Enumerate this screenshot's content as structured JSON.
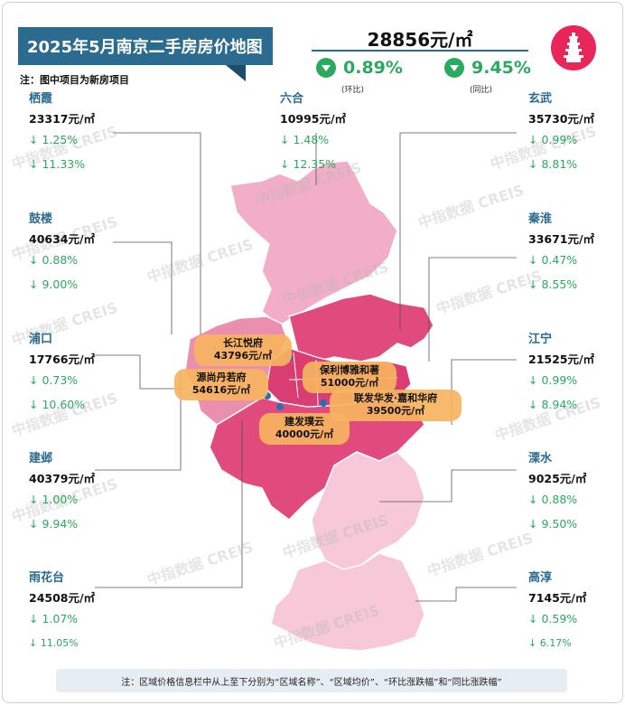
{
  "title": "2025年5月南京二手房房价地图",
  "note": "注：图中项目为新房项目",
  "summary": {
    "avg_price": "28856元/㎡",
    "mom_value": "0.89%",
    "mom_label": "(环比)",
    "yoy_value": "9.45%",
    "yoy_label": "(同比)"
  },
  "districts": {
    "qixia": {
      "name": "栖霞",
      "price": "23317元/㎡",
      "mom": "↓ 1.25%",
      "yoy": "↓ 11.33%"
    },
    "liuhe": {
      "name": "六合",
      "price": "10995元/㎡",
      "mom": "↓ 1.48%",
      "yoy": "↓ 12.35%"
    },
    "xuanwu": {
      "name": "玄武",
      "price": "35730元/㎡",
      "mom": "↓ 0.99%",
      "yoy": "↓ 8.81%"
    },
    "gulou": {
      "name": "鼓楼",
      "price": "40634元/㎡",
      "mom": "↓ 0.88%",
      "yoy": "↓ 9.00%"
    },
    "qinhuai": {
      "name": "秦淮",
      "price": "33671元/㎡",
      "mom": "↓ 0.47%",
      "yoy": "↓ 8.55%"
    },
    "pukou": {
      "name": "浦口",
      "price": "17766元/㎡",
      "mom": "↓ 0.73%",
      "yoy": "↓ 10.60%"
    },
    "jiangning": {
      "name": "江宁",
      "price": "21525元/㎡",
      "mom": "↓ 0.99%",
      "yoy": "↓ 8.94%"
    },
    "jianye": {
      "name": "建邺",
      "price": "40379元/㎡",
      "mom": "↓ 1.00%",
      "yoy": "↓ 9.94%"
    },
    "lishui": {
      "name": "溧水",
      "price": "9025元/㎡",
      "mom": "↓ 0.88%",
      "yoy": "↓ 9.50%"
    },
    "yuhuatai": {
      "name": "雨花台",
      "price": "24508元/㎡",
      "mom": "↓ 1.07%",
      "yoy": "↓ 11.05%"
    },
    "gaochun": {
      "name": "高淳",
      "price": "7145元/㎡",
      "mom": "↓ 0.59%",
      "yoy": "↓ 6.17%"
    }
  },
  "projects": {
    "p1": {
      "name": "长江悦府",
      "price": "43796元/㎡"
    },
    "p2": {
      "name": "源尚丹若府",
      "price": "54616元/㎡"
    },
    "p3": {
      "name": "保利博雅和著",
      "price": "51000元/㎡"
    },
    "p4": {
      "name": "联发华发·嘉和华府",
      "price": "39500元/㎡"
    },
    "p5": {
      "name": "建发璞云",
      "price": "40000元/㎡"
    }
  },
  "watermark": "中指数据 CREIS",
  "footer": "注：区域价格信息栏中从上至下分别为“区域名称”、“区域均价”、“环比涨跌幅”和“同比涨跌幅”",
  "colors": {
    "banner": "#2a6b8f",
    "down_green": "#2aaa5f",
    "map_dark": "#e04a7d",
    "map_mid": "#eb8fae",
    "map_light": "#f6c8d8",
    "label": "#f6b45f"
  }
}
